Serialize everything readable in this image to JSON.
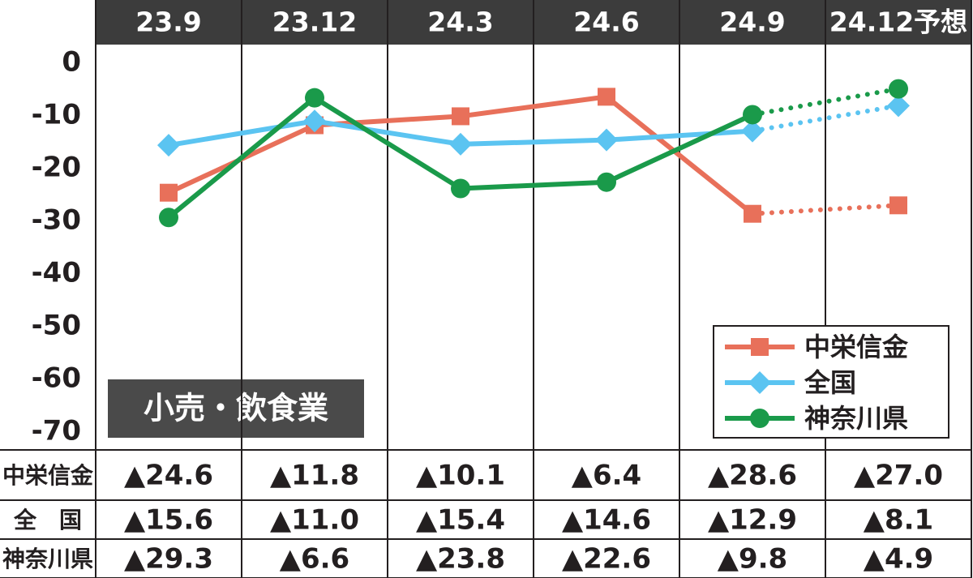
{
  "chart_data": {
    "type": "line",
    "categories": [
      "23.9",
      "23.12",
      "24.3",
      "24.6",
      "24.9",
      "24.12予想"
    ],
    "series": [
      {
        "name": "中栄信金",
        "color": "#e8705a",
        "marker": "square",
        "values": [
          -24.6,
          -11.8,
          -10.1,
          -6.4,
          -28.6,
          -27.0
        ],
        "value_labels": [
          "▲24.6",
          "▲11.8",
          "▲10.1",
          "▲6.4",
          "▲28.6",
          "▲27.0"
        ]
      },
      {
        "name": "全国",
        "color": "#5bc4f1",
        "marker": "diamond",
        "values": [
          -15.6,
          -11.0,
          -15.4,
          -14.6,
          -12.9,
          -8.1
        ],
        "value_labels": [
          "▲15.6",
          "▲11.0",
          "▲15.4",
          "▲14.6",
          "▲12.9",
          "▲8.1"
        ]
      },
      {
        "name": "神奈川県",
        "color": "#1a9a4a",
        "marker": "circle",
        "values": [
          -29.3,
          -6.6,
          -23.8,
          -22.6,
          -9.8,
          -4.9
        ],
        "value_labels": [
          "▲29.3",
          "▲6.6",
          "▲23.8",
          "▲22.6",
          "▲9.8",
          "▲4.9"
        ]
      }
    ],
    "table_row_labels": [
      "中栄信金",
      "全　国",
      "神奈川県"
    ],
    "annotation": "小売・飲食業",
    "ylim": [
      -73.4,
      3.5
    ],
    "yticks": [
      0,
      -10,
      -20,
      -30,
      -40,
      -50,
      -60,
      -70
    ],
    "legend": "lower-right"
  }
}
